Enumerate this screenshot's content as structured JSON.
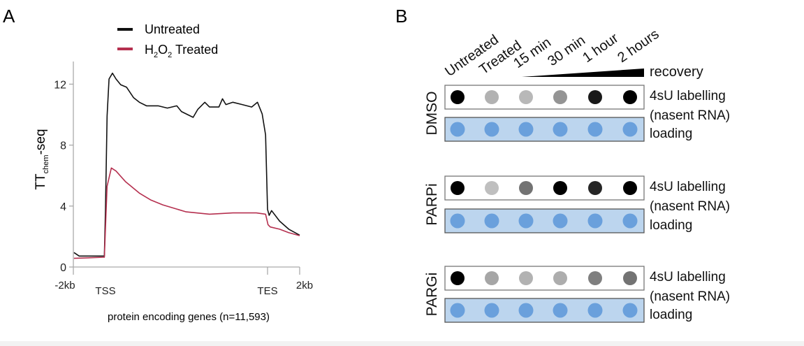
{
  "panel_a": {
    "label": "A"
  },
  "panel_b": {
    "label": "B",
    "columns": [
      "Untreated",
      "Treated",
      "15 min",
      "30 min",
      "1 hour",
      "2 hours"
    ],
    "recovery_label": "recovery",
    "row_labels": {
      "signal": "4sU labelling",
      "signal_sub": "(nasent RNA)",
      "loading": "loading"
    },
    "colors": {
      "signal_dot": "#000000",
      "loading_bg": "#bcd5ee",
      "loading_dot": "#5c97d8"
    },
    "groups": [
      {
        "name": "DMSO",
        "signal_intensity": [
          1.0,
          0.3,
          0.28,
          0.42,
          0.9,
          1.0
        ]
      },
      {
        "name": "PARPi",
        "signal_intensity": [
          1.0,
          0.25,
          0.55,
          1.0,
          0.85,
          1.0
        ]
      },
      {
        "name": "PARGi",
        "signal_intensity": [
          1.0,
          0.35,
          0.3,
          0.32,
          0.5,
          0.55
        ]
      }
    ]
  },
  "chart_data": {
    "type": "line",
    "title": "",
    "ylabel": "TT",
    "ylabel_sub": "chem",
    "ylabel_suffix": "-seq",
    "xlabel": "protein encoding genes (n=11,593)",
    "ylim": [
      0,
      13
    ],
    "yticks": [
      0,
      4,
      8,
      12
    ],
    "xlim": [
      -2,
      12
    ],
    "xticks": [
      {
        "value": -2,
        "label": "-2kb"
      },
      {
        "value": 0,
        "label": "TSS"
      },
      {
        "value": 10,
        "label": "TES"
      },
      {
        "value": 12,
        "label": "2kb"
      }
    ],
    "grid": false,
    "legend_position": "top",
    "series": [
      {
        "name": "Untreated",
        "color": "#111111",
        "points": [
          [
            -1.96,
            0.95
          ],
          [
            -1.64,
            0.72
          ],
          [
            -0.5,
            0.72
          ],
          [
            -0.07,
            0.72
          ],
          [
            0,
            3.78
          ],
          [
            0.1,
            9.9
          ],
          [
            0.22,
            12.34
          ],
          [
            0.43,
            12.72
          ],
          [
            0.65,
            12.34
          ],
          [
            0.94,
            11.96
          ],
          [
            1.3,
            11.8
          ],
          [
            1.73,
            11.12
          ],
          [
            2.09,
            10.81
          ],
          [
            2.53,
            10.58
          ],
          [
            3.25,
            10.58
          ],
          [
            3.82,
            10.43
          ],
          [
            4.4,
            10.58
          ],
          [
            4.69,
            10.2
          ],
          [
            5.41,
            9.82
          ],
          [
            5.7,
            10.35
          ],
          [
            6.13,
            10.81
          ],
          [
            6.42,
            10.5
          ],
          [
            7.0,
            10.5
          ],
          [
            7.22,
            11.04
          ],
          [
            7.43,
            10.66
          ],
          [
            7.86,
            10.81
          ],
          [
            8.44,
            10.66
          ],
          [
            9.02,
            10.5
          ],
          [
            9.38,
            10.81
          ],
          [
            9.67,
            10.05
          ],
          [
            9.88,
            8.67
          ],
          [
            10.0,
            3.78
          ],
          [
            10.1,
            3.39
          ],
          [
            10.25,
            3.7
          ],
          [
            10.75,
            3.01
          ],
          [
            11.32,
            2.48
          ],
          [
            12.0,
            2.09
          ]
        ]
      },
      {
        "name": "H2O2 Treated",
        "name_parts": [
          "H",
          "2",
          "O",
          "2",
          " Treated"
        ],
        "color": "#b5304f",
        "points": [
          [
            -1.96,
            0.57
          ],
          [
            -0.07,
            0.64
          ],
          [
            0,
            2.55
          ],
          [
            0.1,
            5.3
          ],
          [
            0.36,
            6.5
          ],
          [
            0.65,
            6.3
          ],
          [
            1.23,
            5.61
          ],
          [
            2.09,
            4.85
          ],
          [
            2.81,
            4.39
          ],
          [
            3.54,
            4.08
          ],
          [
            4.26,
            3.85
          ],
          [
            4.98,
            3.62
          ],
          [
            6.42,
            3.47
          ],
          [
            7.86,
            3.55
          ],
          [
            9.31,
            3.55
          ],
          [
            9.88,
            3.47
          ],
          [
            10.03,
            2.78
          ],
          [
            10.17,
            2.63
          ],
          [
            10.75,
            2.48
          ],
          [
            11.32,
            2.25
          ],
          [
            12.0,
            2.06
          ]
        ]
      }
    ]
  }
}
